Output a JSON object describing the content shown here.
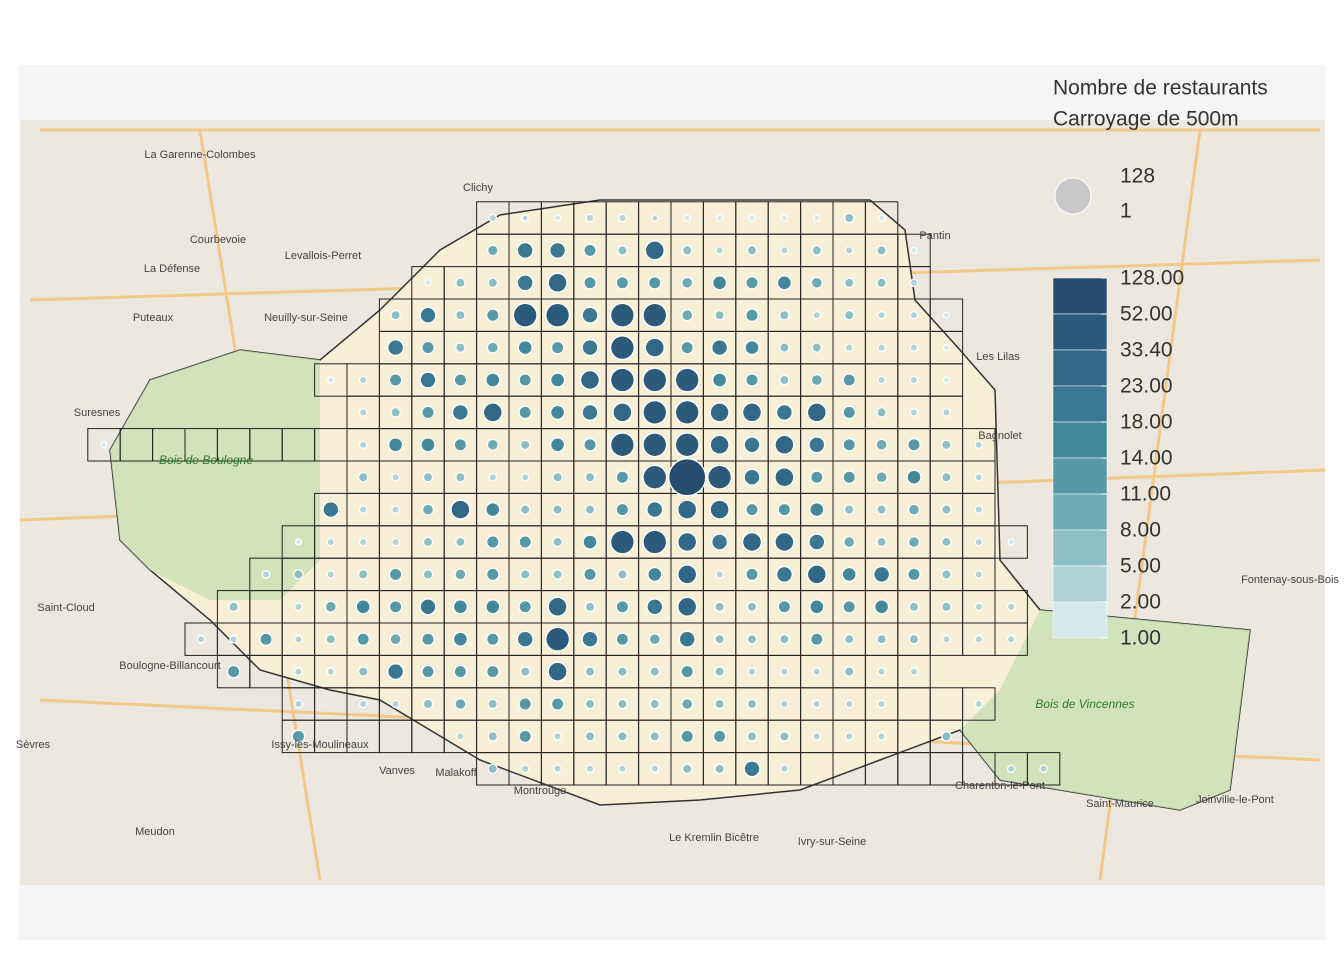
{
  "legend": {
    "title": [
      "Nombre de restaurants",
      "Carroyage de 500m"
    ],
    "size_labels": [
      "128",
      "1"
    ],
    "color_breaks": [
      {
        "value": 128,
        "label": "128.00"
      },
      {
        "value": 52,
        "label": "52.00"
      },
      {
        "value": 33.4,
        "label": "33.40"
      },
      {
        "value": 23,
        "label": "23.00"
      },
      {
        "value": 18,
        "label": "18.00"
      },
      {
        "value": 14,
        "label": "14.00"
      },
      {
        "value": 11,
        "label": "11.00"
      },
      {
        "value": 8,
        "label": "8.00"
      },
      {
        "value": 5,
        "label": "5.00"
      },
      {
        "value": 2,
        "label": "2.00"
      },
      {
        "value": 1,
        "label": "1.00"
      }
    ],
    "colors": [
      "#264d6e",
      "#2c5a7b",
      "#326886",
      "#397890",
      "#43889a",
      "#5698a6",
      "#6eaab4",
      "#8dbec5",
      "#b0d3d7",
      "#d3e9eb"
    ]
  },
  "places": [
    "La Garenne-Colombes",
    "Courbevoie",
    "La Défense",
    "Puteaux",
    "Levallois-Perret",
    "Clichy",
    "Neuilly-sur-Seine",
    "Suresnes",
    "Saint-Cloud",
    "Boulogne-Billancourt",
    "Sèvres",
    "Meudon",
    "Issy-les-Moulineaux",
    "Vanves",
    "Malakoff",
    "Montrouge",
    "Le Kremlin Bicêtre",
    "Ivry-sur-Seine",
    "Charenton-le-Pont",
    "Saint-Maurice",
    "Bagnolet",
    "Pantin",
    "Les Lilas",
    "Fontenay-sous-Bois",
    "Joinville-le-Pont"
  ],
  "parks": [
    "Bois de Boulogne",
    "Bois de Vincennes"
  ],
  "grid": [
    [
      null,
      null,
      null,
      null,
      null,
      null,
      null,
      null,
      null,
      null,
      null,
      null,
      5,
      3,
      2,
      5,
      5,
      3,
      2,
      2,
      2,
      1,
      2,
      8,
      2
    ],
    [
      null,
      null,
      null,
      null,
      null,
      null,
      null,
      null,
      null,
      null,
      null,
      null,
      10,
      23,
      23,
      14,
      8,
      33,
      8,
      5,
      8,
      5,
      8,
      5,
      8,
      2
    ],
    [
      null,
      null,
      null,
      null,
      null,
      null,
      null,
      null,
      null,
      null,
      2,
      8,
      8,
      23,
      33,
      14,
      14,
      14,
      11,
      18,
      14,
      18,
      11,
      8,
      8,
      5
    ],
    [
      null,
      null,
      null,
      null,
      null,
      null,
      null,
      null,
      null,
      8,
      23,
      8,
      14,
      52,
      52,
      23,
      52,
      52,
      11,
      8,
      14,
      8,
      5,
      8,
      5,
      5,
      2
    ],
    [
      null,
      null,
      null,
      null,
      null,
      null,
      null,
      null,
      null,
      23,
      14,
      8,
      11,
      18,
      14,
      23,
      52,
      33,
      14,
      23,
      18,
      8,
      8,
      5,
      5,
      5,
      2
    ],
    [
      null,
      null,
      null,
      null,
      null,
      null,
      null,
      2,
      5,
      14,
      23,
      14,
      18,
      14,
      18,
      33,
      52,
      52,
      52,
      18,
      14,
      8,
      11,
      14,
      5,
      5,
      2
    ],
    [
      null,
      null,
      null,
      null,
      null,
      null,
      null,
      null,
      5,
      8,
      14,
      23,
      33,
      14,
      18,
      23,
      33,
      52,
      52,
      33,
      33,
      23,
      33,
      14,
      8,
      5,
      5
    ],
    [
      2,
      null,
      null,
      null,
      null,
      null,
      null,
      null,
      5,
      18,
      18,
      14,
      11,
      8,
      18,
      14,
      52,
      52,
      52,
      33,
      23,
      33,
      23,
      14,
      11,
      14,
      8,
      5
    ],
    [
      null,
      null,
      null,
      null,
      null,
      null,
      null,
      null,
      8,
      5,
      8,
      8,
      5,
      5,
      8,
      8,
      14,
      52,
      128,
      52,
      23,
      33,
      14,
      14,
      11,
      18,
      8,
      5
    ],
    [
      null,
      null,
      null,
      null,
      null,
      null,
      null,
      23,
      5,
      5,
      11,
      33,
      18,
      8,
      8,
      8,
      14,
      23,
      33,
      33,
      14,
      14,
      18,
      8,
      8,
      11,
      8,
      5
    ],
    [
      null,
      null,
      null,
      null,
      null,
      null,
      2,
      5,
      5,
      5,
      8,
      8,
      14,
      14,
      8,
      18,
      52,
      52,
      33,
      23,
      33,
      33,
      23,
      11,
      8,
      11,
      8,
      5,
      2
    ],
    [
      null,
      null,
      null,
      null,
      null,
      5,
      8,
      5,
      8,
      14,
      8,
      11,
      14,
      8,
      8,
      14,
      8,
      18,
      33,
      5,
      14,
      23,
      33,
      18,
      23,
      14,
      8,
      5
    ],
    [
      null,
      null,
      null,
      null,
      8,
      null,
      5,
      11,
      18,
      14,
      23,
      18,
      18,
      14,
      33,
      8,
      14,
      23,
      33,
      8,
      8,
      14,
      18,
      14,
      18,
      8,
      8,
      5,
      5
    ],
    [
      null,
      null,
      null,
      5,
      5,
      14,
      5,
      8,
      14,
      11,
      14,
      18,
      14,
      23,
      52,
      23,
      14,
      11,
      23,
      8,
      8,
      8,
      14,
      8,
      8,
      8,
      5,
      5,
      5
    ],
    [
      null,
      null,
      null,
      null,
      14,
      null,
      5,
      5,
      8,
      23,
      14,
      14,
      14,
      8,
      33,
      8,
      8,
      8,
      14,
      8,
      5,
      5,
      5,
      8,
      5,
      5
    ],
    [
      null,
      null,
      null,
      null,
      null,
      null,
      5,
      null,
      5,
      5,
      8,
      11,
      8,
      14,
      14,
      8,
      8,
      8,
      11,
      8,
      8,
      5,
      5,
      5,
      5,
      null,
      null,
      5
    ],
    [
      null,
      null,
      null,
      null,
      null,
      null,
      14,
      null,
      null,
      null,
      null,
      5,
      8,
      14,
      5,
      8,
      8,
      8,
      14,
      14,
      8,
      8,
      5,
      5,
      5,
      null,
      8
    ],
    [
      null,
      null,
      null,
      null,
      null,
      null,
      null,
      null,
      null,
      null,
      null,
      null,
      8,
      5,
      5,
      5,
      5,
      5,
      8,
      8,
      23,
      5,
      null,
      null,
      null,
      null,
      null,
      null,
      5,
      5
    ]
  ]
}
